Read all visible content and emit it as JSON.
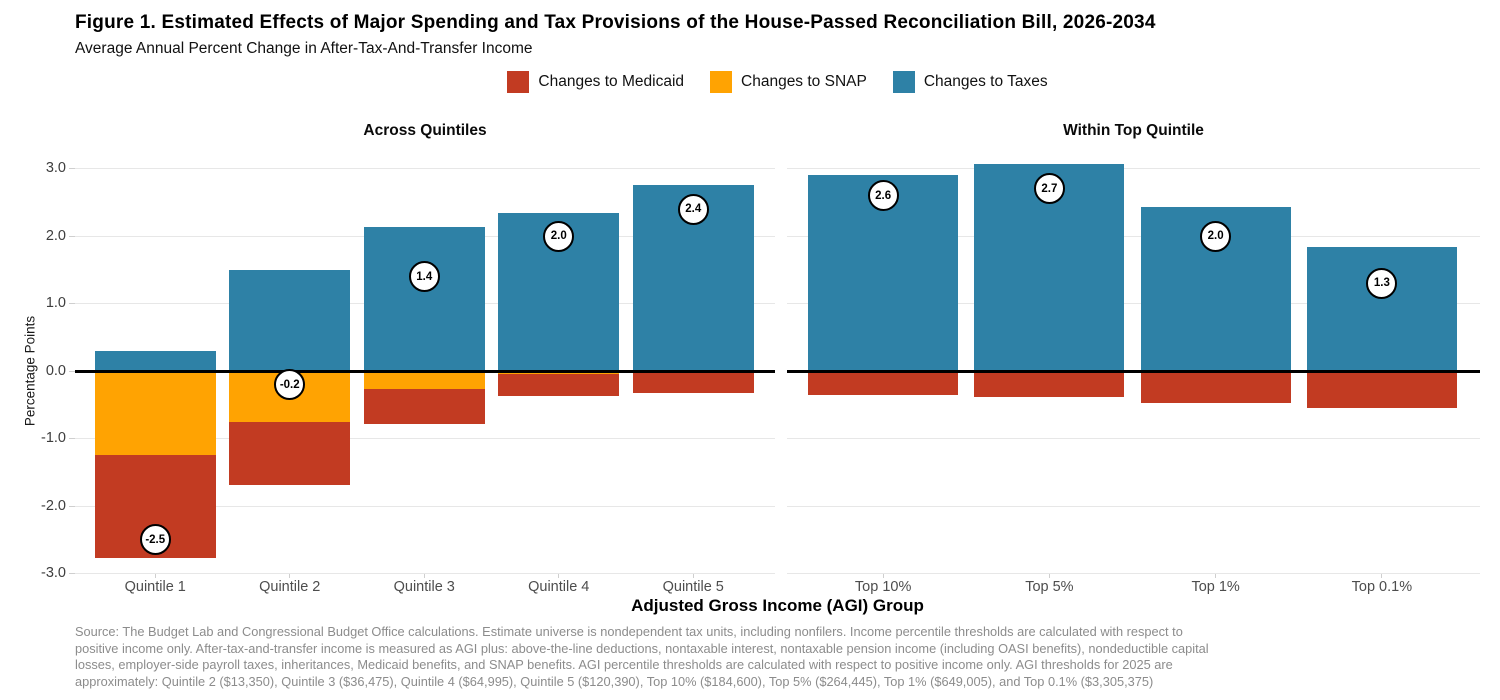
{
  "header": {
    "title": "Figure 1. Estimated Effects of Major Spending and Tax Provisions of the House-Passed Reconciliation Bill, 2026-2034",
    "subtitle": "Average Annual Percent Change in After-Tax-And-Transfer Income"
  },
  "legend": [
    {
      "label": "Changes to Medicaid",
      "color": "#C23B22"
    },
    {
      "label": "Changes to SNAP",
      "color": "#FFA302"
    },
    {
      "label": "Changes to Taxes",
      "color": "#2E81A6"
    }
  ],
  "chart_data": {
    "type": "bar",
    "stacked": true,
    "grid": true,
    "legend_position": "top",
    "ylabel": "Percentage Points",
    "xlabel": "Adjusted Gross Income (AGI) Group",
    "ylim": [
      -3.0,
      3.0
    ],
    "yticks": [
      3.0,
      2.0,
      1.0,
      0.0,
      -1.0,
      -2.0,
      -3.0
    ],
    "panels": [
      {
        "title": "Across Quintiles",
        "categories": [
          "Quintile 1",
          "Quintile 2",
          "Quintile 3",
          "Quintile 4",
          "Quintile 5"
        ],
        "series": [
          {
            "name": "Changes to Medicaid",
            "values": [
              -1.53,
              -0.93,
              -0.52,
              -0.33,
              -0.32
            ]
          },
          {
            "name": "Changes to SNAP",
            "values": [
              -1.24,
              -0.76,
              -0.26,
              -0.04,
              0
            ]
          },
          {
            "name": "Changes to Taxes",
            "values": [
              0.29,
              1.5,
              2.13,
              2.34,
              2.75
            ]
          }
        ],
        "totals": [
          -2.5,
          -0.2,
          1.4,
          2.0,
          2.4
        ],
        "total_labels": [
          "-2.5",
          "-0.2",
          "1.4",
          "2.0",
          "2.4"
        ]
      },
      {
        "title": "Within Top Quintile",
        "categories": [
          "Top 10%",
          "Top 5%",
          "Top 1%",
          "Top 0.1%"
        ],
        "series": [
          {
            "name": "Changes to Medicaid",
            "values": [
              -0.36,
              -0.39,
              -0.48,
              -0.55
            ]
          },
          {
            "name": "Changes to SNAP",
            "values": [
              0,
              0,
              0,
              0
            ]
          },
          {
            "name": "Changes to Taxes",
            "values": [
              2.91,
              3.07,
              2.43,
              1.83
            ]
          }
        ],
        "totals": [
          2.6,
          2.7,
          2.0,
          1.3
        ],
        "total_labels": [
          "2.6",
          "2.7",
          "2.0",
          "1.3"
        ]
      }
    ]
  },
  "source_note": {
    "lines": [
      "Source: The Budget Lab and Congressional Budget Office calculations. Estimate universe is nondependent tax units, including nonfilers. Income percentile thresholds are calculated with respect to",
      "positive income only. After-tax-and-transfer income is measured as AGI plus: above-the-line deductions, nontaxable interest, nontaxable pension income (including OASI benefits), nondeductible capital",
      "losses, employer-side payroll taxes, inheritances, Medicaid benefits, and SNAP benefits. AGI percentile thresholds are calculated with respect to positive income only. AGI thresholds for 2025 are",
      "approximately: Quintile 2 ($13,350), Quintile 3 ($36,475), Quintile 4 ($64,995), Quintile 5 ($120,390), Top 10% ($184,600), Top 5% ($264,445), Top 1% ($649,005), and Top 0.1% ($3,305,375)"
    ]
  }
}
